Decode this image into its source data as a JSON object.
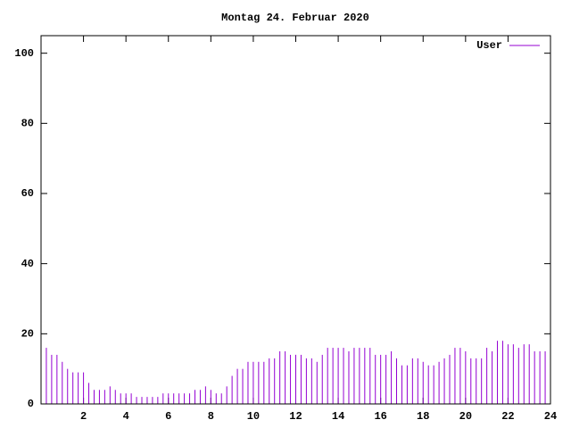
{
  "chart_data": {
    "type": "impulses",
    "title": "Montag 24. Februar 2020",
    "x": [
      0,
      0.25,
      0.5,
      0.75,
      1,
      1.25,
      1.5,
      1.75,
      2,
      2.25,
      2.5,
      2.75,
      3,
      3.25,
      3.5,
      3.75,
      4,
      4.25,
      4.5,
      4.75,
      5,
      5.25,
      5.5,
      5.75,
      6,
      6.25,
      6.5,
      6.75,
      7,
      7.25,
      7.5,
      7.75,
      8,
      8.25,
      8.5,
      8.75,
      9,
      9.25,
      9.5,
      9.75,
      10,
      10.25,
      10.5,
      10.75,
      11,
      11.25,
      11.5,
      11.75,
      12,
      12.25,
      12.5,
      12.75,
      13,
      13.25,
      13.5,
      13.75,
      14,
      14.25,
      14.5,
      14.75,
      15,
      15.25,
      15.5,
      15.75,
      16,
      16.25,
      16.5,
      16.75,
      17,
      17.25,
      17.5,
      17.75,
      18,
      18.25,
      18.5,
      18.75,
      19,
      19.25,
      19.5,
      19.75,
      20,
      20.25,
      20.5,
      20.75,
      21,
      21.25,
      21.5,
      21.75,
      22,
      22.25,
      22.5,
      22.75,
      23,
      23.25,
      23.5,
      23.75,
      24
    ],
    "series": [
      {
        "name": "User",
        "color": "#9400d3",
        "values": [
          15,
          16,
          14,
          14,
          12,
          10,
          9,
          9,
          9,
          6,
          4,
          4,
          4,
          5,
          4,
          3,
          3,
          3,
          2,
          2,
          2,
          2,
          2,
          3,
          3,
          3,
          3,
          3,
          3,
          4,
          4,
          5,
          4,
          3,
          3,
          5,
          8,
          10,
          10,
          12,
          12,
          12,
          12,
          13,
          13,
          15,
          15,
          14,
          14,
          14,
          13,
          13,
          12,
          14,
          16,
          16,
          16,
          16,
          15,
          16,
          16,
          16,
          16,
          14,
          14,
          14,
          15,
          13,
          11,
          11,
          13,
          13,
          12,
          11,
          11,
          12,
          13,
          14,
          16,
          16,
          15,
          13,
          13,
          13,
          16,
          15,
          18,
          18,
          17,
          17,
          16,
          17,
          17,
          15,
          15,
          15,
          14
        ]
      }
    ],
    "xlim": [
      0,
      24
    ],
    "xticks": [
      2,
      4,
      6,
      8,
      10,
      12,
      14,
      16,
      18,
      20,
      22,
      24
    ],
    "ylim": [
      0,
      105
    ],
    "yticks": [
      0,
      20,
      40,
      60,
      80,
      100
    ],
    "legend": "upper right"
  }
}
